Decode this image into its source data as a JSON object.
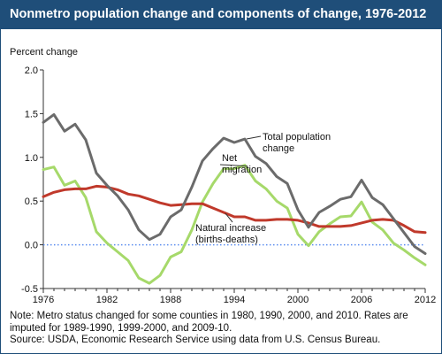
{
  "title": "Nonmetro population change and components of change, 1976-2012",
  "colors": {
    "title_bar": "#1f4e79",
    "total_population_change": "#6b6b6b",
    "net_migration": "#a6d96a",
    "natural_increase": "#c0392b",
    "zero_line": "#5b8def"
  },
  "chart_data": {
    "type": "line",
    "ylabel": "Percent change",
    "ylim": [
      -0.5,
      2.0
    ],
    "yticks": [
      "2.0",
      "1.5",
      "1.0",
      "0.5",
      "0.0",
      "-0.5"
    ],
    "xlim": [
      1976,
      2012
    ],
    "xticks": [
      "1976",
      "1982",
      "1988",
      "1994",
      "2000",
      "2006",
      "2012"
    ],
    "grid": false,
    "reference_line": {
      "y": 0.0,
      "style": "dotted"
    },
    "x": [
      1976,
      1977,
      1978,
      1979,
      1980,
      1981,
      1982,
      1983,
      1984,
      1985,
      1986,
      1987,
      1988,
      1989,
      1990,
      1991,
      1992,
      1993,
      1994,
      1995,
      1996,
      1997,
      1998,
      1999,
      2000,
      2001,
      2002,
      2003,
      2004,
      2005,
      2006,
      2007,
      2008,
      2009,
      2010,
      2011,
      2012
    ],
    "series": [
      {
        "name": "Total population change",
        "values": [
          1.4,
          1.49,
          1.3,
          1.38,
          1.2,
          0.82,
          0.68,
          0.56,
          0.4,
          0.17,
          0.06,
          0.12,
          0.32,
          0.4,
          0.66,
          0.96,
          1.1,
          1.22,
          1.17,
          1.21,
          1.01,
          0.93,
          0.78,
          0.7,
          0.4,
          0.2,
          0.37,
          0.44,
          0.52,
          0.55,
          0.74,
          0.54,
          0.46,
          0.3,
          0.14,
          -0.02,
          -0.1
        ]
      },
      {
        "name": "Net migration",
        "values": [
          0.86,
          0.89,
          0.68,
          0.73,
          0.54,
          0.15,
          0.02,
          -0.08,
          -0.18,
          -0.38,
          -0.44,
          -0.35,
          -0.14,
          -0.08,
          0.17,
          0.49,
          0.7,
          0.87,
          0.87,
          0.91,
          0.73,
          0.64,
          0.5,
          0.42,
          0.12,
          -0.01,
          0.15,
          0.24,
          0.32,
          0.33,
          0.49,
          0.26,
          0.17,
          0.02,
          -0.06,
          -0.15,
          -0.23
        ]
      },
      {
        "name": "Natural increase (births-deaths)",
        "values": [
          0.55,
          0.6,
          0.63,
          0.64,
          0.64,
          0.67,
          0.66,
          0.63,
          0.58,
          0.56,
          0.52,
          0.48,
          0.45,
          0.46,
          0.47,
          0.47,
          0.42,
          0.37,
          0.32,
          0.32,
          0.28,
          0.28,
          0.29,
          0.29,
          0.28,
          0.25,
          0.21,
          0.21,
          0.21,
          0.22,
          0.25,
          0.28,
          0.29,
          0.28,
          0.22,
          0.15,
          0.14
        ]
      }
    ],
    "annotations": {
      "total": [
        "Total population",
        "change"
      ],
      "migration": [
        "Net",
        "migration"
      ],
      "natural": [
        "Natural increase",
        "(births-deaths)"
      ]
    }
  },
  "notes": {
    "line1": "Note: Metro status changed for some counties in 1980, 1990, 2000, and 2010. Rates are",
    "line2": "imputed for 1989-1990, 1999-2000, and 2009-10.",
    "line3": "Source: USDA, Economic Research Service using data from U.S. Census Bureau."
  }
}
